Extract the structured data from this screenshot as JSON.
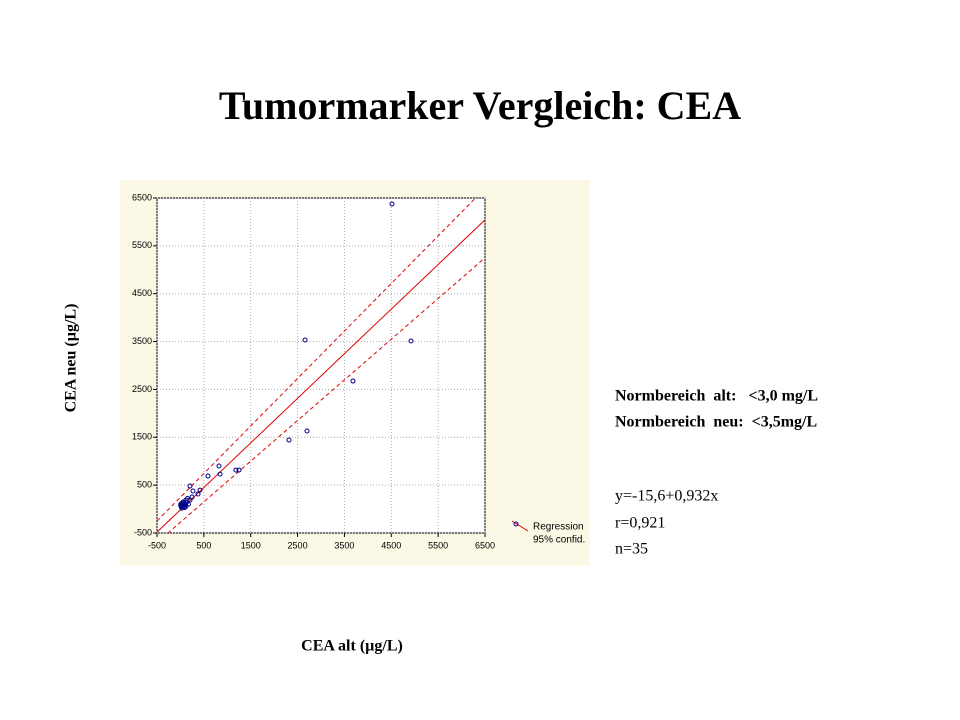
{
  "chart_data": {
    "type": "scatter",
    "title": "Tumormarker Vergleich: CEA",
    "xlabel": "CEA alt (µg/L)",
    "ylabel": "CEA neu (µg/L)",
    "xlim": [
      -500,
      6500
    ],
    "ylim": [
      -500,
      6500
    ],
    "xticks": [
      -500,
      500,
      1500,
      2500,
      3500,
      4500,
      5500,
      6500
    ],
    "yticks": [
      -500,
      500,
      1500,
      2500,
      3500,
      4500,
      5500,
      6500
    ],
    "grid": true,
    "series": [
      {
        "color": "#00008b",
        "x": [
          4515,
          2659,
          4921,
          3683,
          2317,
          2701,
          1250,
          1185,
          845,
          823,
          588,
          418,
          375,
          204,
          268,
          247,
          119,
          204,
          76,
          12,
          40,
          60,
          100,
          150,
          20,
          80,
          130,
          170,
          30,
          55,
          10,
          90,
          120,
          5,
          65
        ],
        "y": [
          6375,
          3533,
          3512,
          2675,
          1442,
          1631,
          815,
          815,
          731,
          900,
          690,
          397,
          314,
          481,
          377,
          251,
          188,
          188,
          126,
          63,
          100,
          150,
          90,
          220,
          40,
          50,
          140,
          100,
          20,
          70,
          110,
          30,
          60,
          80,
          120
        ]
      }
    ],
    "regression": {
      "name": "Regression",
      "color": "#e00000",
      "x": [
        -500,
        6500
      ],
      "y": [
        -481.6,
        6042.4
      ]
    },
    "confidence": {
      "name": "95% confid.",
      "color": "#e00000",
      "x": [
        -500,
        6500
      ],
      "upper": [
        -250,
        6700
      ],
      "lower": [
        -700,
        5250
      ]
    },
    "annotations": [
      "Normbereich  alt:   <3,0 mg/L",
      "Normbereich  neu:  <3,5mg/L",
      "y=-15,6+0,932x",
      "r=0,921",
      "n=35"
    ]
  }
}
